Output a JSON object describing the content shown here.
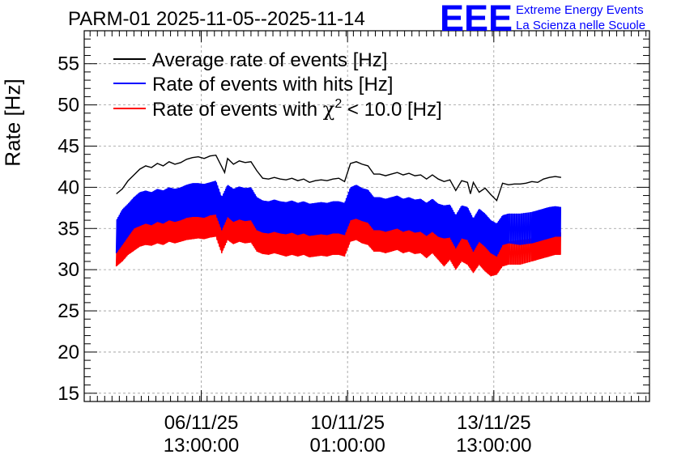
{
  "title": "PARM-01 2025-11-05--2025-11-14",
  "logo": {
    "mark": "EEE",
    "line1": "Extreme Energy Events",
    "line2": "La Scienza nelle Scuole",
    "color": "#0000ff"
  },
  "chart_data": {
    "type": "line",
    "title": "PARM-01 2025-11-05--2025-11-14",
    "ylabel": "Rate [Hz]",
    "xlabel": "",
    "ylim": [
      14,
      59
    ],
    "xlim_days": [
      0,
      9.66
    ],
    "grid": true,
    "legend_position": "top-left",
    "yticks": [
      15,
      20,
      25,
      30,
      35,
      40,
      45,
      50,
      55
    ],
    "xticks": [
      {
        "day": 2.0,
        "date": "06/11/25",
        "time": "13:00:00"
      },
      {
        "day": 4.5,
        "date": "10/11/25",
        "time": "01:00:00"
      },
      {
        "day": 7.0,
        "date": "13/11/25",
        "time": "13:00:00"
      }
    ],
    "legend": [
      {
        "label": "Average rate of events [Hz]",
        "color": "#000000"
      },
      {
        "label": "Rate of events with hits [Hz]",
        "color": "#0000ff"
      },
      {
        "label_pre": "Rate of events with ",
        "label_chi": "χ",
        "label_sup": "2",
        "label_post": " < 10.0 [Hz]",
        "color": "#ff0000"
      }
    ],
    "series": [
      {
        "name": "Average rate of events [Hz]",
        "color": "#000000",
        "style": "line",
        "x": [
          0.55,
          0.65,
          0.75,
          0.85,
          0.95,
          1.05,
          1.15,
          1.25,
          1.35,
          1.45,
          1.55,
          1.65,
          1.75,
          1.85,
          1.95,
          2.05,
          2.15,
          2.25,
          2.35,
          2.4,
          2.45,
          2.55,
          2.65,
          2.75,
          2.85,
          2.95,
          3.05,
          3.15,
          3.25,
          3.35,
          3.45,
          3.55,
          3.65,
          3.75,
          3.85,
          3.95,
          4.05,
          4.15,
          4.25,
          4.35,
          4.45,
          4.55,
          4.65,
          4.75,
          4.85,
          4.95,
          5.05,
          5.15,
          5.25,
          5.35,
          5.45,
          5.55,
          5.65,
          5.75,
          5.85,
          5.95,
          6.05,
          6.15,
          6.25,
          6.35,
          6.45,
          6.55,
          6.6,
          6.65,
          6.75,
          6.85,
          6.95,
          7.05,
          7.15,
          7.25,
          7.35,
          7.45,
          7.55,
          7.65,
          7.75,
          7.85,
          7.95,
          8.05,
          8.15
        ],
        "y": [
          39.2,
          39.8,
          40.8,
          41.5,
          42.2,
          42.6,
          42.4,
          42.9,
          42.6,
          43.1,
          42.8,
          43.0,
          43.4,
          43.6,
          43.7,
          43.5,
          43.8,
          43.9,
          42.5,
          41.8,
          43.5,
          42.8,
          43.2,
          43.0,
          43.1,
          42.0,
          41.1,
          41.0,
          41.2,
          41.0,
          40.9,
          41.1,
          40.8,
          41.0,
          40.6,
          40.8,
          40.9,
          40.8,
          41.0,
          41.1,
          40.7,
          42.9,
          43.1,
          42.8,
          42.6,
          41.6,
          41.6,
          41.4,
          41.6,
          41.8,
          41.5,
          41.7,
          41.4,
          41.5,
          41.0,
          41.5,
          41.0,
          40.7,
          40.9,
          39.6,
          40.8,
          40.6,
          39.2,
          40.6,
          39.4,
          39.9,
          39.1,
          38.4,
          40.5,
          40.3,
          40.4,
          40.4,
          40.5,
          40.7,
          40.6,
          41.0,
          41.2,
          41.3,
          41.2
        ]
      },
      {
        "name": "Rate of events with hits [Hz]",
        "color": "#0000ff",
        "style": "band",
        "x": [
          0.55,
          0.65,
          0.75,
          0.85,
          0.95,
          1.05,
          1.15,
          1.25,
          1.35,
          1.45,
          1.55,
          1.65,
          1.75,
          1.85,
          1.95,
          2.05,
          2.15,
          2.25,
          2.35,
          2.45,
          2.55,
          2.65,
          2.75,
          2.85,
          2.95,
          3.05,
          3.15,
          3.25,
          3.35,
          3.45,
          3.55,
          3.65,
          3.75,
          3.85,
          3.95,
          4.05,
          4.15,
          4.25,
          4.35,
          4.45,
          4.55,
          4.65,
          4.75,
          4.85,
          4.95,
          5.05,
          5.15,
          5.25,
          5.35,
          5.45,
          5.55,
          5.65,
          5.75,
          5.85,
          5.95,
          6.05,
          6.15,
          6.25,
          6.35,
          6.45,
          6.55,
          6.65,
          6.75,
          6.85,
          6.95,
          7.05,
          7.15,
          7.25,
          7.45,
          7.65,
          7.75,
          7.85,
          7.95,
          8.05,
          8.15
        ],
        "low": [
          32.0,
          33.0,
          34.0,
          35.0,
          35.3,
          35.6,
          35.4,
          35.8,
          35.6,
          36.0,
          35.8,
          36.0,
          36.3,
          36.4,
          36.4,
          36.3,
          36.6,
          36.7,
          34.8,
          36.4,
          35.8,
          36.1,
          35.9,
          36.0,
          34.8,
          34.5,
          34.4,
          34.6,
          34.4,
          34.3,
          34.5,
          34.2,
          34.4,
          34.1,
          34.2,
          34.3,
          34.2,
          34.4,
          34.4,
          34.2,
          36.0,
          36.2,
          35.9,
          35.7,
          34.8,
          34.8,
          34.6,
          34.8,
          35.0,
          34.6,
          34.8,
          34.5,
          34.6,
          34.1,
          34.6,
          34.0,
          33.8,
          33.9,
          32.6,
          33.8,
          33.6,
          32.2,
          33.4,
          32.8,
          32.0,
          31.6,
          33.0,
          33.2,
          33.0,
          33.2,
          33.4,
          33.6,
          33.8,
          34.0,
          34.0
        ],
        "high": [
          36.0,
          37.3,
          38.0,
          38.8,
          39.4,
          39.6,
          39.4,
          39.8,
          39.6,
          40.0,
          39.8,
          40.0,
          40.3,
          40.5,
          40.5,
          40.4,
          40.6,
          40.8,
          38.8,
          40.3,
          39.8,
          40.1,
          39.9,
          40.0,
          38.8,
          38.4,
          38.3,
          38.5,
          38.3,
          38.2,
          38.4,
          38.1,
          38.3,
          38.0,
          38.1,
          38.2,
          38.1,
          38.3,
          38.3,
          38.1,
          40.0,
          40.3,
          39.9,
          39.7,
          38.8,
          38.8,
          38.6,
          38.8,
          39.0,
          38.6,
          38.8,
          38.5,
          38.6,
          38.1,
          38.6,
          38.0,
          37.8,
          37.9,
          36.6,
          37.8,
          37.6,
          36.2,
          37.4,
          36.8,
          36.0,
          35.6,
          36.6,
          36.8,
          36.8,
          37.0,
          37.2,
          37.4,
          37.6,
          37.7,
          37.6
        ]
      },
      {
        "name": "Rate of events with chi2 < 10.0 [Hz]",
        "color": "#ff0000",
        "style": "band",
        "x": [
          0.55,
          0.65,
          0.75,
          0.85,
          0.95,
          1.05,
          1.15,
          1.25,
          1.35,
          1.45,
          1.55,
          1.65,
          1.75,
          1.85,
          1.95,
          2.05,
          2.15,
          2.25,
          2.35,
          2.45,
          2.55,
          2.65,
          2.75,
          2.85,
          2.95,
          3.05,
          3.15,
          3.25,
          3.35,
          3.45,
          3.55,
          3.65,
          3.75,
          3.85,
          3.95,
          4.05,
          4.15,
          4.25,
          4.35,
          4.45,
          4.55,
          4.65,
          4.75,
          4.85,
          4.95,
          5.05,
          5.15,
          5.25,
          5.35,
          5.45,
          5.55,
          5.65,
          5.75,
          5.85,
          5.95,
          6.05,
          6.15,
          6.25,
          6.35,
          6.45,
          6.55,
          6.65,
          6.75,
          6.85,
          6.95,
          7.05,
          7.15,
          7.25,
          7.45,
          7.65,
          7.75,
          7.85,
          7.95,
          8.05,
          8.15
        ],
        "low": [
          30.4,
          31.0,
          31.8,
          32.3,
          32.8,
          33.0,
          32.9,
          33.2,
          33.0,
          33.4,
          33.2,
          33.4,
          33.6,
          33.7,
          33.8,
          33.7,
          33.9,
          34.0,
          32.0,
          33.6,
          33.1,
          33.4,
          33.2,
          33.3,
          32.2,
          31.9,
          31.8,
          32.0,
          31.8,
          31.6,
          31.8,
          31.6,
          31.8,
          31.5,
          31.6,
          31.7,
          31.6,
          31.8,
          31.8,
          31.6,
          33.4,
          33.6,
          33.2,
          33.0,
          32.2,
          32.2,
          32.0,
          32.2,
          32.4,
          32.0,
          32.2,
          31.9,
          32.0,
          31.4,
          32.0,
          31.2,
          30.4,
          31.2,
          30.0,
          31.0,
          30.6,
          29.6,
          30.6,
          29.8,
          29.2,
          29.4,
          30.4,
          30.6,
          30.6,
          31.0,
          31.2,
          31.4,
          31.6,
          31.8,
          31.8
        ],
        "high": [
          33.6,
          34.2,
          34.8,
          35.3,
          35.8,
          36.0,
          35.8,
          36.2,
          36.0,
          36.4,
          36.2,
          36.4,
          36.7,
          36.8,
          36.8,
          36.7,
          37.0,
          37.1,
          35.2,
          36.8,
          36.2,
          36.5,
          36.3,
          36.4,
          35.3,
          34.9,
          34.8,
          35.0,
          34.8,
          34.6,
          34.8,
          34.6,
          34.8,
          34.5,
          34.6,
          34.7,
          34.6,
          34.8,
          34.8,
          34.6,
          36.6,
          36.8,
          36.4,
          36.2,
          35.3,
          35.3,
          35.1,
          35.3,
          35.5,
          35.1,
          35.3,
          35.0,
          35.1,
          34.6,
          35.1,
          34.3,
          33.8,
          34.4,
          33.2,
          34.2,
          33.8,
          32.8,
          33.8,
          33.0,
          32.4,
          32.2,
          33.2,
          33.4,
          33.6,
          33.8,
          34.0,
          34.2,
          34.4,
          34.6,
          34.5
        ]
      }
    ]
  }
}
